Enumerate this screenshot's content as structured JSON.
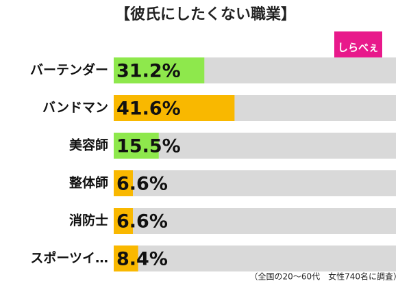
{
  "chart_data": {
    "type": "bar",
    "title": "【彼氏にしたくない職業】",
    "categories": [
      "バーテンダー",
      "バンドマン",
      "美容師",
      "整体師",
      "消防士",
      "スポーツイ…"
    ],
    "values": [
      31.2,
      41.6,
      15.5,
      6.6,
      6.6,
      8.4
    ],
    "value_labels": [
      "31.2%",
      "41.6%",
      "15.5%",
      "6.6%",
      "6.6%",
      "8.4%"
    ],
    "colors": [
      "#8ee84c",
      "#f9b800",
      "#8ee84c",
      "#f9b800",
      "#f9b800",
      "#f9b800"
    ],
    "xlim": [
      0,
      100
    ],
    "note": "（全国の20～60代　女性740名に調査）",
    "logo": "しらべぇ"
  }
}
